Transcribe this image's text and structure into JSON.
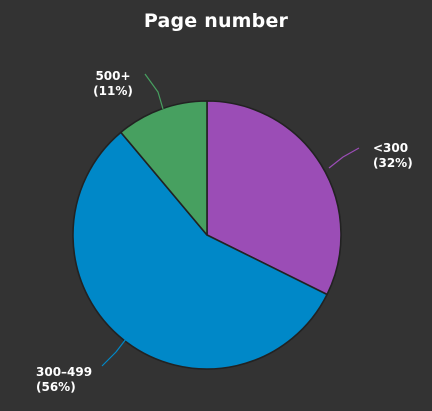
{
  "chart_data": {
    "type": "pie",
    "title": "Page number",
    "slices": [
      {
        "label": "<300",
        "percent_text": "(32%)",
        "value": 32,
        "color": "#9B4DB6"
      },
      {
        "label": "300–499",
        "percent_text": "(56%)",
        "value": 56,
        "color": "#0088C8"
      },
      {
        "label": "500+",
        "percent_text": "(11%)",
        "value": 11,
        "color": "#47A060"
      }
    ],
    "leader_color_matches_slice": true,
    "background": "#333333",
    "border_color": "#222222"
  }
}
